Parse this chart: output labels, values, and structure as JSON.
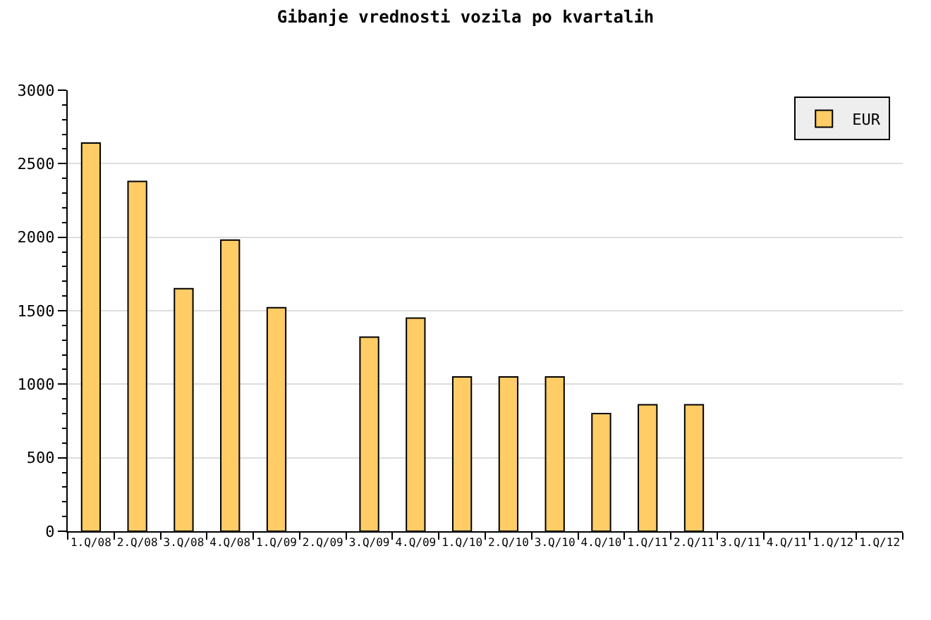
{
  "chart_data": {
    "type": "bar",
    "title": "Gibanje vrednosti vozila po kvartalih",
    "categories": [
      "1.Q/08",
      "2.Q/08",
      "3.Q/08",
      "4.Q/08",
      "1.Q/09",
      "2.Q/09",
      "3.Q/09",
      "4.Q/09",
      "1.Q/10",
      "2.Q/10",
      "3.Q/10",
      "4.Q/10",
      "1.Q/11",
      "2.Q/11",
      "3.Q/11",
      "4.Q/11",
      "1.Q/12",
      "1.Q/12"
    ],
    "series": [
      {
        "name": "EUR",
        "color": "#ffcc66",
        "values": [
          2640,
          2380,
          1650,
          1980,
          1520,
          null,
          1320,
          1450,
          1050,
          1050,
          1050,
          800,
          860,
          860,
          null,
          null,
          null,
          null
        ]
      }
    ],
    "ylim": [
      0,
      3000
    ],
    "yticks": [
      0,
      500,
      1000,
      1500,
      2000,
      2500,
      3000
    ],
    "grid": "y",
    "legend": "top right"
  }
}
